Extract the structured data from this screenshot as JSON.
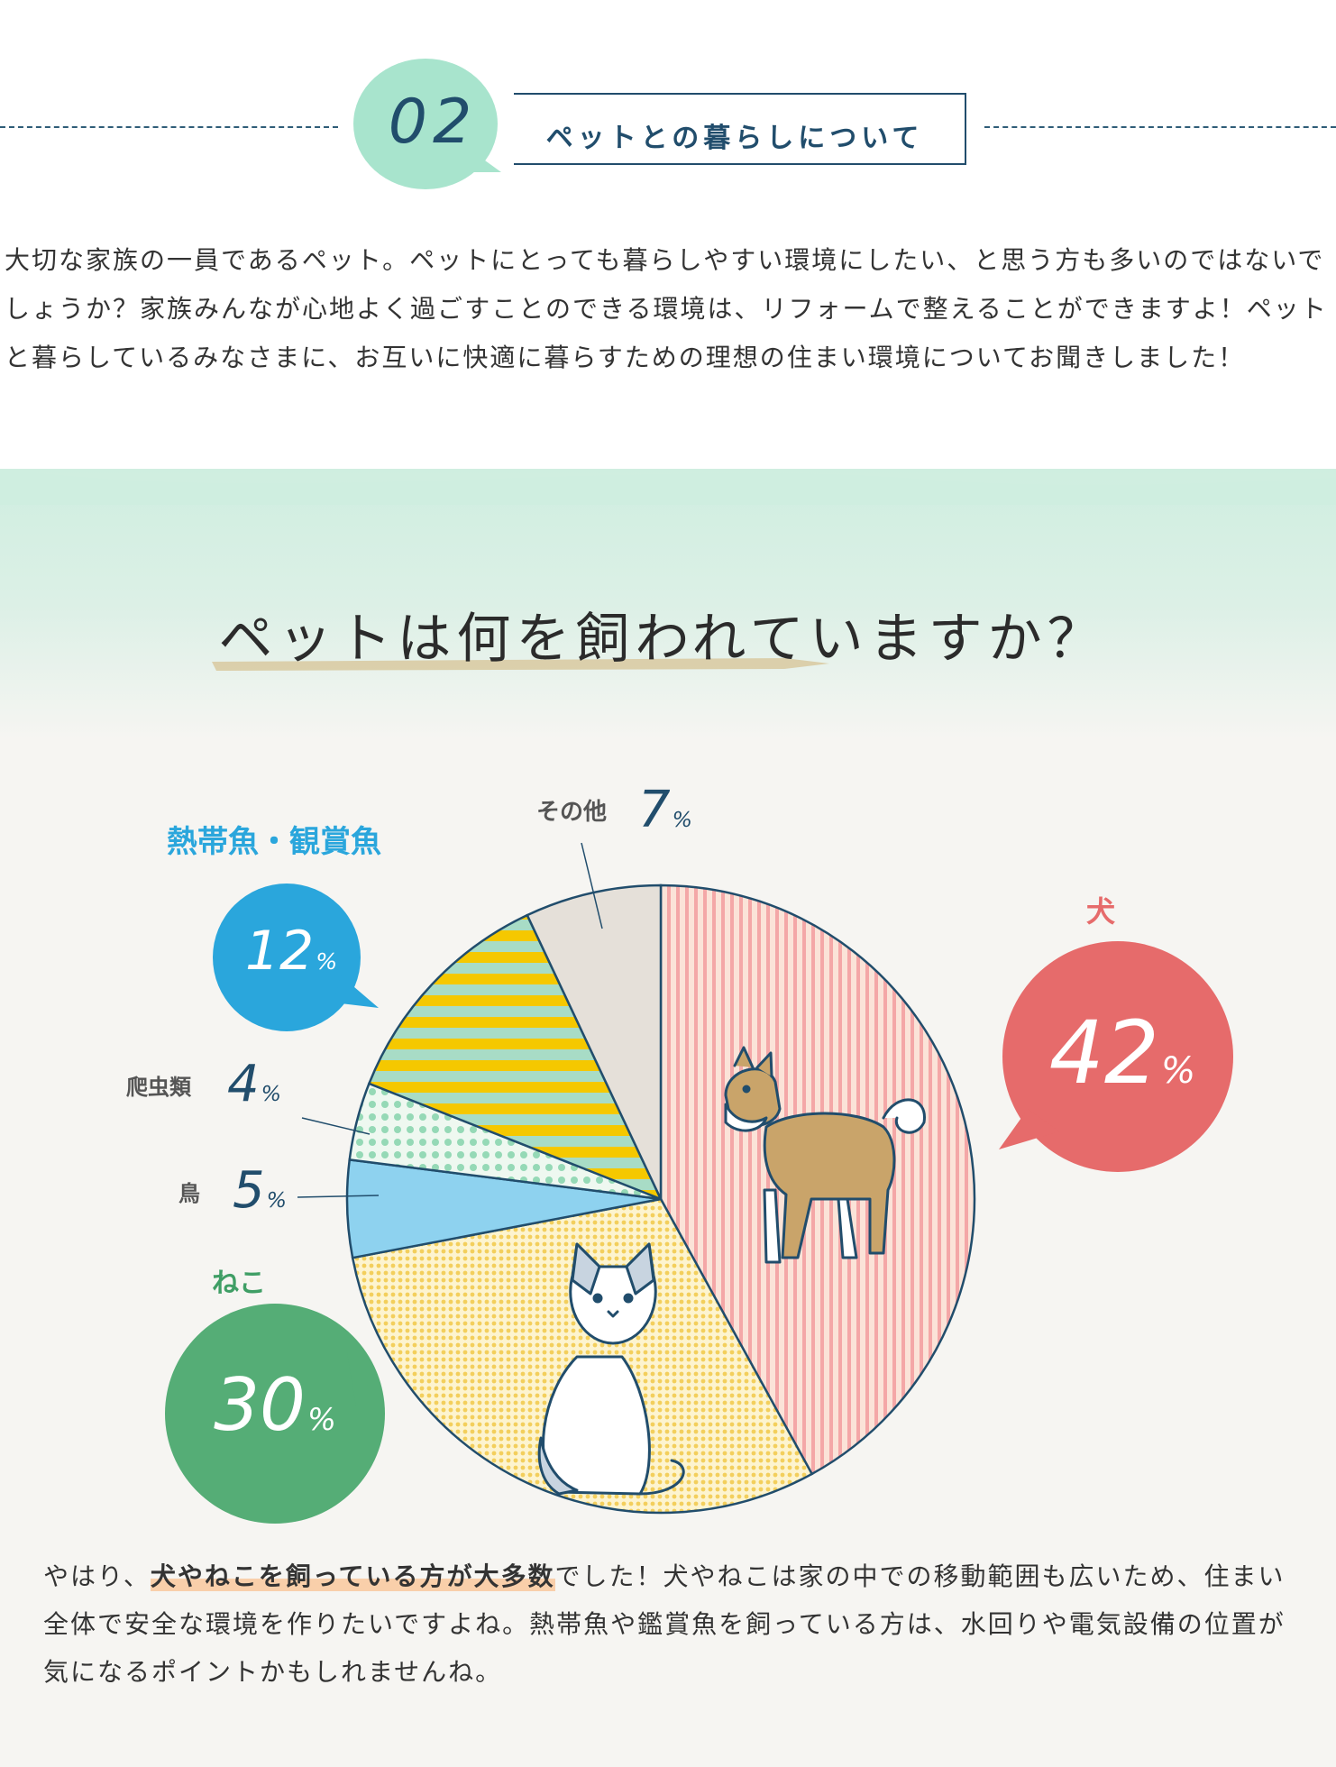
{
  "section": {
    "number": "02",
    "title": "ペットとの暮らしについて"
  },
  "intro": "大切な家族の一員であるペット。ペットにとっても暮らしやすい環境にしたい、と思う方も多いのではないでしょうか？家族みんなが心地よく過ごすことのできる環境は、リフォームで整えることができますよ！ペットと暮らしているみなさまに、お互いに快適に暮らすための理想の住まい環境についてお聞きしました！",
  "question": "ペットは何を飼われていますか？",
  "chart_data": {
    "type": "pie",
    "unit": "%",
    "categories": [
      "犬",
      "ねこ",
      "鳥",
      "爬虫類",
      "熱帯魚・観賞魚",
      "その他"
    ],
    "values": [
      42,
      30,
      5,
      4,
      12,
      7
    ],
    "colors": {
      "dog": "#e66b6b",
      "cat": "#f3cf5c",
      "bird": "#8ed2ef",
      "reptile": "#95d9b6",
      "fish": "#2aa6dc",
      "other": "#e5e0d9",
      "fish_stripe": "#f5c800",
      "dog_stripe": "#f4a7a7",
      "outline": "#214d6c"
    },
    "labels": {
      "dog": {
        "name": "犬",
        "value": "42"
      },
      "cat": {
        "name": "ねこ",
        "value": "30"
      },
      "fish": {
        "name": "熱帯魚・観賞魚",
        "value": "12"
      },
      "other": {
        "name": "その他",
        "value": "7"
      },
      "reptile": {
        "name": "爬虫類",
        "value": "4"
      },
      "bird": {
        "name": "鳥",
        "value": "5"
      },
      "percent": "%"
    },
    "icons": [
      "dog-icon",
      "cat-icon"
    ]
  },
  "conclusion": {
    "before": "やはり、",
    "highlight": "犬やねこを飼っている方が大多数",
    "after": "でした！犬やねこは家の中での移動範囲も広いため、住まい全体で安全な環境を作りたいですよね。熱帯魚や鑑賞魚を飼っている方は、水回りや電気設備の位置が気になるポイントかもしれませんね。"
  }
}
